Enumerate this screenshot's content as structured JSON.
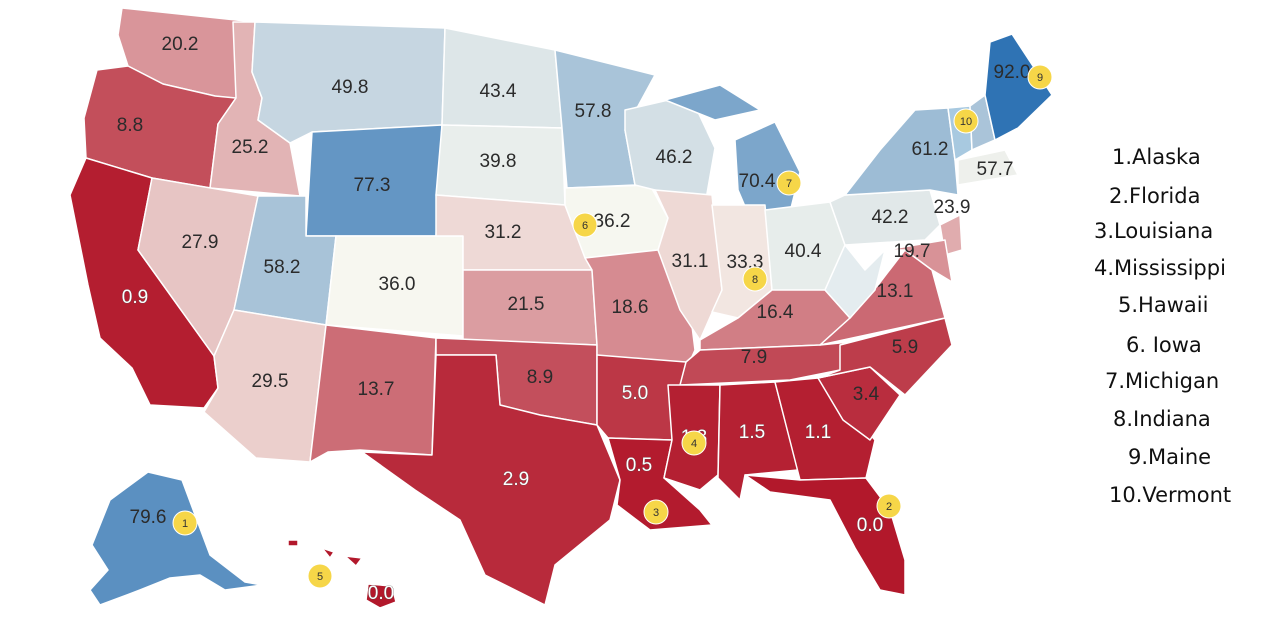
{
  "colors": {
    "scale_low": "#b2182b",
    "scale_mid": "#f7f7f0",
    "scale_high": "#2f73b4",
    "marker": "#f6d648"
  },
  "states": [
    {
      "id": "WA",
      "value": "20.2"
    },
    {
      "id": "OR",
      "value": "8.8"
    },
    {
      "id": "CA",
      "value": "0.9"
    },
    {
      "id": "ID",
      "value": "25.2"
    },
    {
      "id": "NV",
      "value": "27.9"
    },
    {
      "id": "MT",
      "value": "49.8"
    },
    {
      "id": "WY",
      "value": "77.3"
    },
    {
      "id": "UT",
      "value": "58.2"
    },
    {
      "id": "AZ",
      "value": "29.5"
    },
    {
      "id": "CO",
      "value": "36.0"
    },
    {
      "id": "NM",
      "value": "13.7"
    },
    {
      "id": "ND",
      "value": "43.4"
    },
    {
      "id": "SD",
      "value": "39.8"
    },
    {
      "id": "NE",
      "value": "31.2"
    },
    {
      "id": "KS",
      "value": "21.5"
    },
    {
      "id": "OK",
      "value": "8.9"
    },
    {
      "id": "TX",
      "value": "2.9"
    },
    {
      "id": "MN",
      "value": "57.8"
    },
    {
      "id": "IA",
      "value": "36.2"
    },
    {
      "id": "MO",
      "value": "18.6"
    },
    {
      "id": "AR",
      "value": "5.0"
    },
    {
      "id": "LA",
      "value": "0.5"
    },
    {
      "id": "WI",
      "value": "46.2"
    },
    {
      "id": "IL",
      "value": "31.1"
    },
    {
      "id": "MI",
      "value": "70.4"
    },
    {
      "id": "IN",
      "value": "33.3"
    },
    {
      "id": "OH",
      "value": "40.4"
    },
    {
      "id": "KY",
      "value": "16.4"
    },
    {
      "id": "TN",
      "value": "7.9"
    },
    {
      "id": "MS",
      "value": "1.3"
    },
    {
      "id": "AL",
      "value": "1.5"
    },
    {
      "id": "GA",
      "value": "1.1"
    },
    {
      "id": "FL",
      "value": "0.0"
    },
    {
      "id": "SC",
      "value": "3.4"
    },
    {
      "id": "NC",
      "value": "5.9"
    },
    {
      "id": "VA",
      "value": "13.1"
    },
    {
      "id": "WV",
      "value": ""
    },
    {
      "id": "PA",
      "value": "42.2"
    },
    {
      "id": "NY",
      "value": "61.2"
    },
    {
      "id": "VT",
      "value": ""
    },
    {
      "id": "NH",
      "value": "57.7"
    },
    {
      "id": "ME",
      "value": "92.0"
    },
    {
      "id": "MA",
      "value": ""
    },
    {
      "id": "NJ",
      "value": "23.9"
    },
    {
      "id": "MD",
      "value": "19.7"
    },
    {
      "id": "AK",
      "value": "79.6"
    },
    {
      "id": "HI",
      "value": "0.0"
    }
  ],
  "markers": [
    "1",
    "2",
    "3",
    "4",
    "5",
    "6",
    "7",
    "8",
    "9",
    "10"
  ],
  "legend": [
    "1.Alaska",
    "2.Florida",
    "3.Louisiana",
    "4.Mississippi",
    "5.Hawaii",
    "6. Iowa",
    "7.Michigan",
    "8.Indiana",
    "9.Maine",
    "10.Vermont"
  ]
}
